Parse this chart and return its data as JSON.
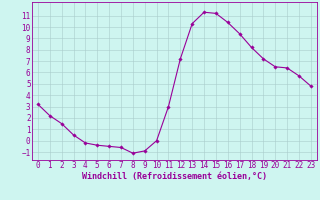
{
  "x": [
    0,
    1,
    2,
    3,
    4,
    5,
    6,
    7,
    8,
    9,
    10,
    11,
    12,
    13,
    14,
    15,
    16,
    17,
    18,
    19,
    20,
    21,
    22,
    23
  ],
  "y": [
    3.2,
    2.2,
    1.5,
    0.5,
    -0.2,
    -0.4,
    -0.5,
    -0.6,
    -1.1,
    -0.9,
    0.0,
    3.0,
    7.2,
    10.3,
    11.3,
    11.2,
    10.4,
    9.4,
    8.2,
    7.2,
    6.5,
    6.4,
    5.7,
    4.8
  ],
  "xlim": [
    -0.5,
    23.5
  ],
  "ylim": [
    -1.7,
    12.2
  ],
  "xticks": [
    0,
    1,
    2,
    3,
    4,
    5,
    6,
    7,
    8,
    9,
    10,
    11,
    12,
    13,
    14,
    15,
    16,
    17,
    18,
    19,
    20,
    21,
    22,
    23
  ],
  "yticks": [
    -1,
    0,
    1,
    2,
    3,
    4,
    5,
    6,
    7,
    8,
    9,
    10,
    11
  ],
  "xlabel": "Windchill (Refroidissement éolien,°C)",
  "line_color": "#990099",
  "marker": "D",
  "marker_size": 1.8,
  "bg_color": "#cef5f0",
  "grid_color": "#aacccc",
  "label_fontsize": 6,
  "tick_fontsize": 5.5
}
